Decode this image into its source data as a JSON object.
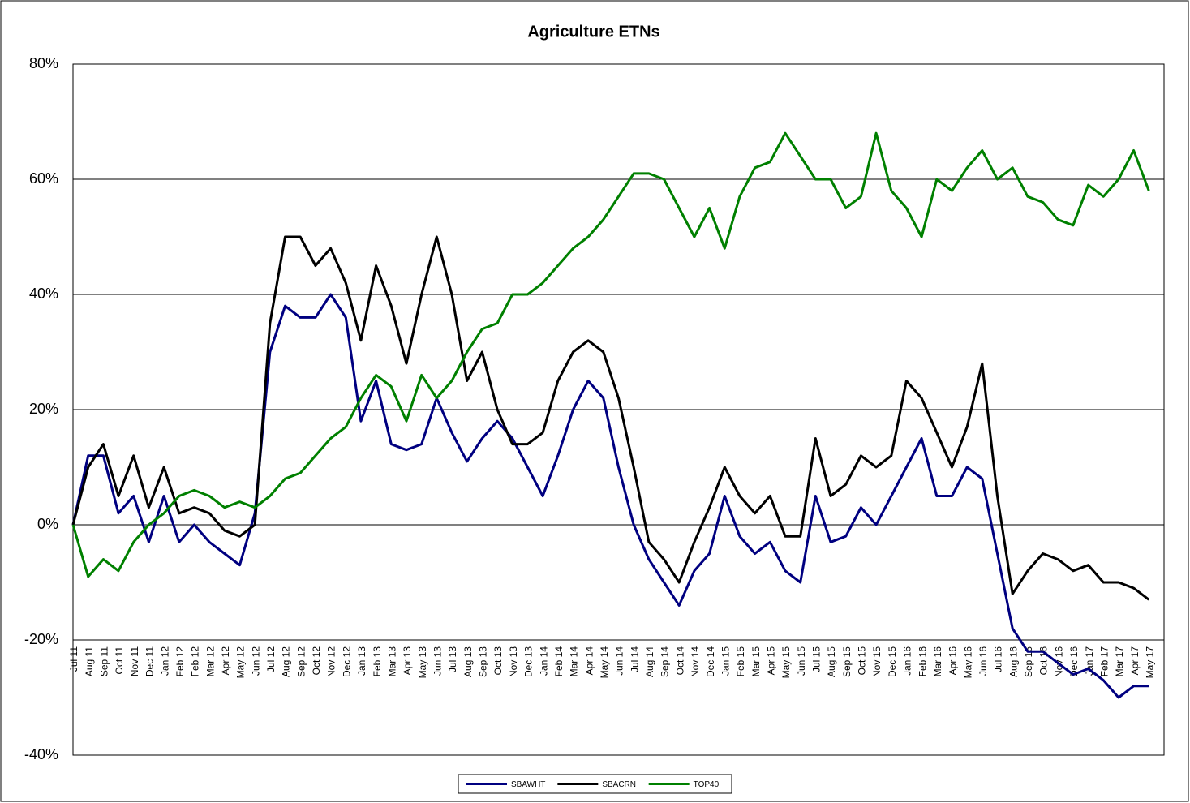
{
  "chart_data": {
    "type": "line",
    "title": "Agriculture ETNs",
    "categories": [
      "Jul 11",
      "Aug 11",
      "Sep 11",
      "Oct 11",
      "Nov 11",
      "Dec 11",
      "Jan 12",
      "Feb 12",
      "Feb 12",
      "Mar 12",
      "Apr 12",
      "May 12",
      "Jun 12",
      "Jul 12",
      "Aug 12",
      "Sep 12",
      "Oct 12",
      "Nov 12",
      "Dec 12",
      "Jan 13",
      "Feb 13",
      "Mar 13",
      "Apr 13",
      "May 13",
      "Jun 13",
      "Jul 13",
      "Aug 13",
      "Sep 13",
      "Oct 13",
      "Nov 13",
      "Dec 13",
      "Jan 14",
      "Feb 14",
      "Mar 14",
      "Apr 14",
      "May 14",
      "Jun 14",
      "Jul 14",
      "Aug 14",
      "Sep 14",
      "Oct 14",
      "Nov 14",
      "Dec 14",
      "Jan 15",
      "Feb 15",
      "Mar 15",
      "Apr 15",
      "May 15",
      "Jun 15",
      "Jul 15",
      "Aug 15",
      "Sep 15",
      "Oct 15",
      "Nov 15",
      "Dec 15",
      "Jan 16",
      "Feb 16",
      "Mar 16",
      "Apr 16",
      "May 16",
      "Jun 16",
      "Jul 16",
      "Aug 16",
      "Sep 16",
      "Oct 16",
      "Nov 16",
      "Dec 16",
      "Jan 17",
      "Feb 17",
      "Mar 17",
      "Apr 17",
      "May 17"
    ],
    "series": [
      {
        "name": "SBAWHT",
        "color": "#000080",
        "values": [
          0,
          12,
          12,
          2,
          5,
          -3,
          5,
          -3,
          0,
          -3,
          -5,
          -7,
          2,
          30,
          38,
          36,
          36,
          40,
          36,
          18,
          25,
          14,
          13,
          14,
          22,
          16,
          11,
          15,
          18,
          15,
          10,
          5,
          12,
          20,
          25,
          22,
          10,
          0,
          -6,
          -10,
          -14,
          -8,
          -5,
          5,
          -2,
          -5,
          -3,
          -8,
          -10,
          5,
          -3,
          -2,
          3,
          0,
          5,
          10,
          15,
          5,
          5,
          10,
          8,
          -5,
          -18,
          -22,
          -22,
          -24,
          -26,
          -25,
          -27,
          -30,
          -28,
          -28
        ]
      },
      {
        "name": "SBACRN",
        "color": "#000000",
        "values": [
          0,
          10,
          14,
          5,
          12,
          3,
          10,
          2,
          3,
          2,
          -1,
          -2,
          0,
          35,
          50,
          50,
          45,
          48,
          42,
          32,
          45,
          38,
          28,
          40,
          50,
          40,
          25,
          30,
          20,
          14,
          14,
          16,
          25,
          30,
          32,
          30,
          22,
          10,
          -3,
          -6,
          -10,
          -3,
          3,
          10,
          5,
          2,
          5,
          -2,
          -2,
          15,
          5,
          7,
          12,
          10,
          12,
          25,
          22,
          16,
          10,
          17,
          28,
          5,
          -12,
          -8,
          -5,
          -6,
          -8,
          -7,
          -10,
          -10,
          -11,
          -13
        ]
      },
      {
        "name": "TOP40",
        "color": "#008000",
        "values": [
          0,
          -9,
          -6,
          -8,
          -3,
          0,
          2,
          5,
          6,
          5,
          3,
          4,
          3,
          5,
          8,
          9,
          12,
          15,
          17,
          22,
          26,
          24,
          18,
          26,
          22,
          25,
          30,
          34,
          35,
          40,
          40,
          42,
          45,
          48,
          50,
          53,
          57,
          61,
          61,
          60,
          55,
          50,
          55,
          48,
          57,
          62,
          63,
          68,
          64,
          60,
          60,
          55,
          57,
          68,
          58,
          55,
          50,
          60,
          58,
          62,
          65,
          60,
          62,
          57,
          56,
          53,
          52,
          59,
          57,
          60,
          65,
          58
        ]
      }
    ],
    "ylim": [
      -40,
      80
    ],
    "yticks": [
      {
        "value": -40,
        "label": "-40%"
      },
      {
        "value": -20,
        "label": "-20%"
      },
      {
        "value": 0,
        "label": "0%"
      },
      {
        "value": 20,
        "label": "20%"
      },
      {
        "value": 40,
        "label": "40%"
      },
      {
        "value": 60,
        "label": "60%"
      },
      {
        "value": 80,
        "label": "80%"
      }
    ],
    "grid": true
  }
}
